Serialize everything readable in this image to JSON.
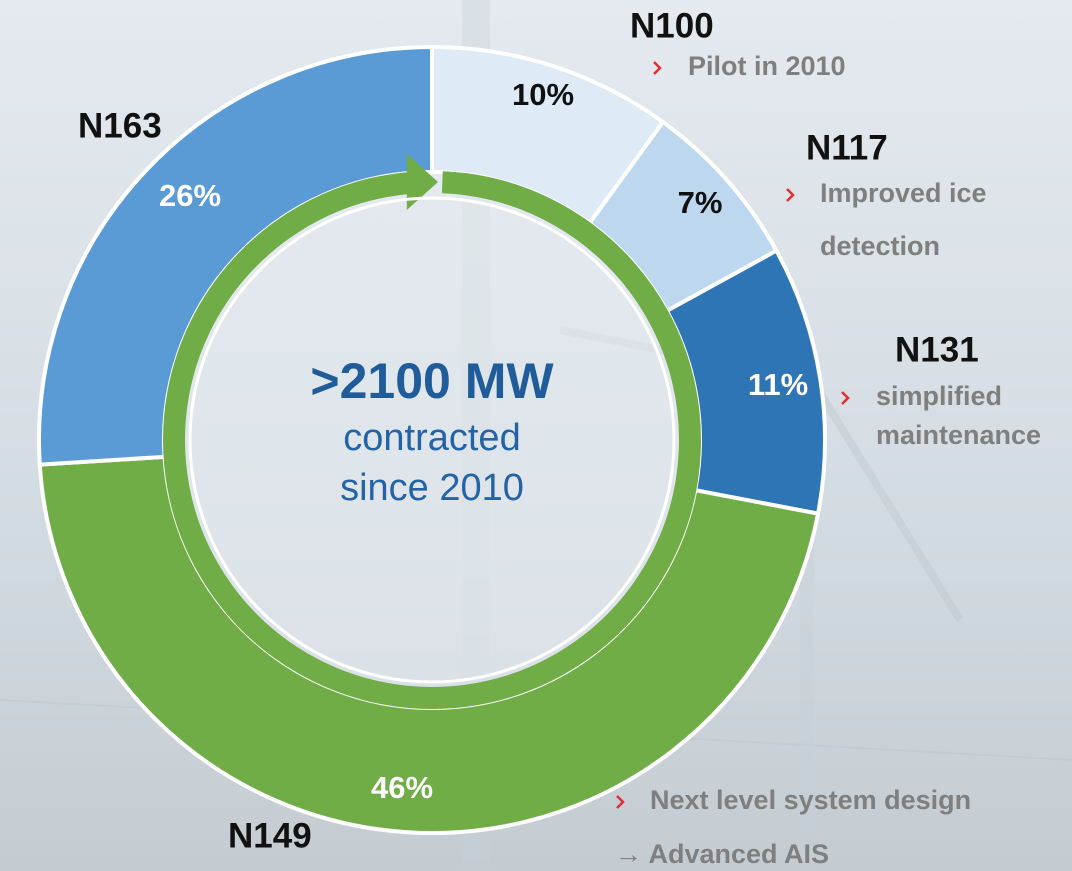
{
  "chart_data": {
    "type": "pie",
    "categories": [
      "N100",
      "N117",
      "N131",
      "N149",
      "N163"
    ],
    "values": [
      10,
      7,
      11,
      46,
      26
    ],
    "value_labels": [
      "10%",
      "7%",
      "11%",
      "46%",
      "26%"
    ],
    "colors": [
      "#deeaf6",
      "#bdd7ee",
      "#2e75b6",
      "#70ad47",
      "#5b9bd5"
    ],
    "center_text": [
      ">2100 MW",
      "contracted",
      "since 2010"
    ],
    "annotations": [
      [
        "Pilot in 2010"
      ],
      [
        "Improved ice",
        "detection"
      ],
      [
        "simplified",
        "maintenance"
      ],
      [
        "Next level system design",
        "→ Advanced AIS"
      ],
      []
    ]
  }
}
